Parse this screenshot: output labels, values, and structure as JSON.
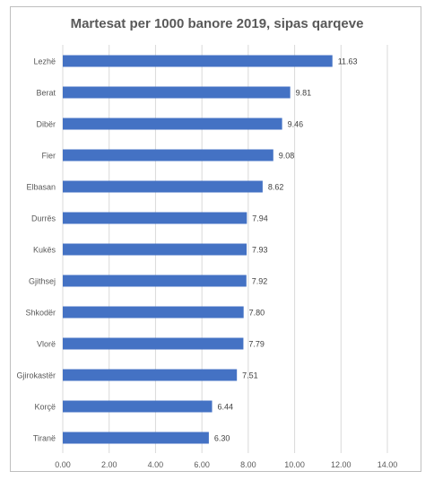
{
  "chart_data": {
    "type": "bar",
    "orientation": "horizontal",
    "title": "Martesat per 1000 banore 2019, sipas qarqeve",
    "categories": [
      "Lezhë",
      "Berat",
      "Dibër",
      "Fier",
      "Elbasan",
      "Durrës",
      "Kukës",
      "Gjithsej",
      "Shkodër",
      "Vlorë",
      "Gjirokastër",
      "Korçë",
      "Tiranë"
    ],
    "values": [
      11.63,
      9.81,
      9.46,
      9.08,
      8.62,
      7.94,
      7.93,
      7.92,
      7.8,
      7.79,
      7.51,
      6.44,
      6.3
    ],
    "value_labels": [
      "11.63",
      "9.81",
      "9.46",
      "9.08",
      "8.62",
      "7.94",
      "7.93",
      "7.92",
      "7.80",
      "7.79",
      "7.51",
      "6.44",
      "6.30"
    ],
    "xticks": [
      "0.00",
      "2.00",
      "4.00",
      "6.00",
      "8.00",
      "10.00",
      "12.00",
      "14.00"
    ],
    "xlim": [
      0,
      14
    ],
    "xlabel": "",
    "ylabel": "",
    "grid": "vertical",
    "legend": "none",
    "bar_color": "#4472c4",
    "grid_color": "#d9d9d9"
  }
}
